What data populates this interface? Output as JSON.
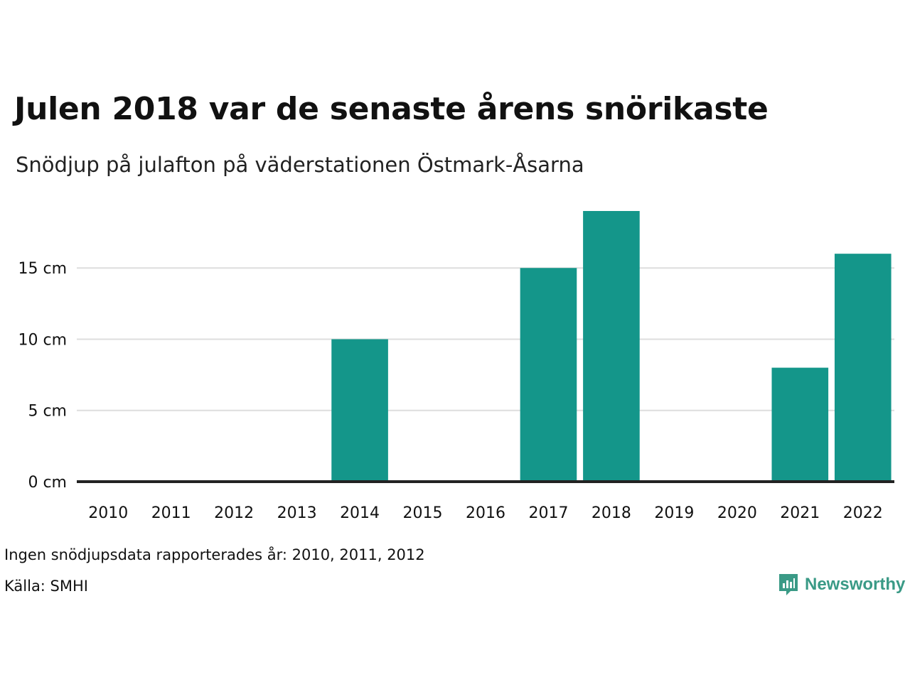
{
  "colors": {
    "bar": "#14968a",
    "baseline": "#222222",
    "grid": "#dddddd",
    "brand": "#3a9a86"
  },
  "chart_data": {
    "type": "bar",
    "title": "Julen 2018 var de senaste årens snörikaste",
    "subtitle": "Snödjup på julafton på väderstationen Östmark-Åsarna",
    "categories": [
      "2010",
      "2011",
      "2012",
      "2013",
      "2014",
      "2015",
      "2016",
      "2017",
      "2018",
      "2019",
      "2020",
      "2021",
      "2022"
    ],
    "values": [
      0,
      0,
      0,
      0,
      10,
      0,
      0,
      15,
      19,
      0,
      0,
      8,
      16
    ],
    "unit": "cm",
    "yticks": [
      0,
      5,
      10,
      15
    ],
    "ytick_labels": [
      "0 cm",
      "5 cm",
      "10 cm",
      "15 cm"
    ],
    "ylim": [
      0,
      19
    ],
    "grid": true,
    "legend": "none",
    "xlabel": "",
    "ylabel": ""
  },
  "footer": {
    "note": "Ingen snödjupsdata rapporterades år: 2010, 2011, 2012",
    "source": "Källa: SMHI",
    "brand": "Newsworthy",
    "brand_icon": "newsworthy-logo-icon"
  }
}
